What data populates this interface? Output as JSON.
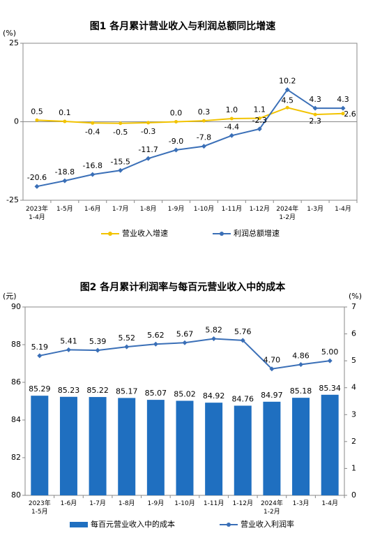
{
  "chart_data": [
    {
      "type": "line",
      "title": "图1  各月累计营业收入与利润总额同比增速",
      "y_label": "(%)",
      "categories": [
        "2023年\n1-4月",
        "1-5月",
        "1-6月",
        "1-7月",
        "1-8月",
        "1-9月",
        "1-10月",
        "1-11月",
        "1-12月",
        "2024年\n1-2月",
        "1-3月",
        "1-4月"
      ],
      "ylim": [
        -25,
        25
      ],
      "yticks": [
        -25,
        0,
        25
      ],
      "legend": "bottom",
      "series": [
        {
          "name": "营业收入增速",
          "color": "#f2c300",
          "values": [
            0.5,
            0.1,
            -0.4,
            -0.5,
            -0.3,
            0.0,
            0.3,
            1.0,
            1.1,
            4.5,
            2.3,
            2.6
          ],
          "value_labels": [
            "0.5",
            "0.1",
            "-0.4",
            "-0.5",
            "-0.3",
            "0.0",
            "0.3",
            "1.0",
            "1.1",
            "4.5",
            "2.3",
            "2.6"
          ]
        },
        {
          "name": "利润总额增速",
          "color": "#3a6fb7",
          "values": [
            -20.6,
            -18.8,
            -16.8,
            -15.5,
            -11.7,
            -9.0,
            -7.8,
            -4.4,
            -2.3,
            10.2,
            4.3,
            4.3
          ],
          "value_labels": [
            "-20.6",
            "-18.8",
            "-16.8",
            "-15.5",
            "-11.7",
            "-9.0",
            "-7.8",
            "-4.4",
            "-2.3",
            "10.2",
            "4.3",
            "4.3"
          ]
        }
      ]
    },
    {
      "type": "bar_line",
      "title": "图2  各月累计利润率与每百元营业收入中的成本",
      "y_label": "(元)",
      "y2_label": "(%)",
      "categories": [
        "2023年\n1-5月",
        "1-6月",
        "1-7月",
        "1-8月",
        "1-9月",
        "1-10月",
        "1-11月",
        "1-12月",
        "2024年\n1-2月",
        "1-3月",
        "1-4月"
      ],
      "ylim": [
        80,
        90
      ],
      "yticks": [
        80,
        82,
        84,
        86,
        88,
        90
      ],
      "y2lim": [
        0,
        7
      ],
      "y2ticks": [
        0,
        1,
        2,
        3,
        4,
        5,
        6,
        7
      ],
      "legend": "bottom",
      "series": [
        {
          "name": "每百元营业收入中的成本",
          "type": "bar",
          "color": "#1f6fc0",
          "values": [
            85.29,
            85.23,
            85.22,
            85.17,
            85.07,
            85.02,
            84.92,
            84.76,
            84.97,
            85.18,
            85.34
          ],
          "value_labels": [
            "85.29",
            "85.23",
            "85.22",
            "85.17",
            "85.07",
            "85.02",
            "84.92",
            "84.76",
            "84.97",
            "85.18",
            "85.34"
          ]
        },
        {
          "name": "营业收入利润率",
          "type": "line",
          "axis": "y2",
          "color": "#3a6fb7",
          "values": [
            5.19,
            5.41,
            5.39,
            5.52,
            5.62,
            5.67,
            5.82,
            5.76,
            4.7,
            4.86,
            5.0
          ],
          "value_labels": [
            "5.19",
            "5.41",
            "5.39",
            "5.52",
            "5.62",
            "5.67",
            "5.82",
            "5.76",
            "4.70",
            "4.86",
            "5.00"
          ]
        }
      ]
    }
  ]
}
